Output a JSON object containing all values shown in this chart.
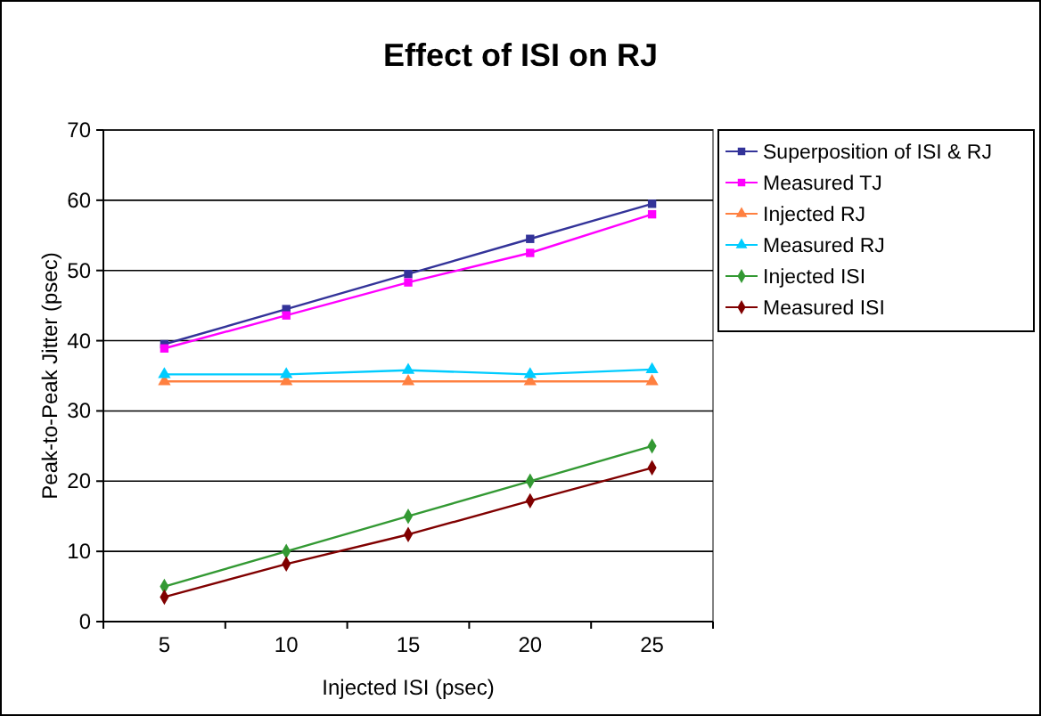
{
  "chart_data": {
    "type": "line",
    "title": "Effect of ISI on RJ",
    "xlabel": "Injected ISI (psec)",
    "ylabel": "Peak-to-Peak Jitter (psec)",
    "categories": [
      "5",
      "10",
      "15",
      "20",
      "25"
    ],
    "series": [
      {
        "name": "Superposition of ISI & RJ",
        "color": "#333399",
        "marker": "square",
        "values": [
          39.5,
          44.5,
          49.5,
          54.5,
          59.5
        ]
      },
      {
        "name": "Measured TJ",
        "color": "#ff00ff",
        "marker": "square",
        "values": [
          38.9,
          43.6,
          48.3,
          52.5,
          58.0
        ]
      },
      {
        "name": "Injected RJ",
        "color": "#ff8040",
        "marker": "triangle",
        "values": [
          34.2,
          34.2,
          34.2,
          34.2,
          34.2
        ]
      },
      {
        "name": "Measured RJ",
        "color": "#00ccff",
        "marker": "triangle",
        "values": [
          35.2,
          35.2,
          35.8,
          35.2,
          35.9
        ]
      },
      {
        "name": "Injected ISI",
        "color": "#339933",
        "marker": "diamond",
        "values": [
          5,
          10,
          15,
          20,
          25
        ]
      },
      {
        "name": "Measured ISI",
        "color": "#800000",
        "marker": "diamond",
        "values": [
          3.5,
          8.2,
          12.4,
          17.2,
          21.9
        ]
      }
    ],
    "ylim": [
      0,
      70
    ],
    "yticks": [
      0,
      10,
      20,
      30,
      40,
      50,
      60,
      70
    ],
    "grid": "y",
    "legend": "right"
  }
}
